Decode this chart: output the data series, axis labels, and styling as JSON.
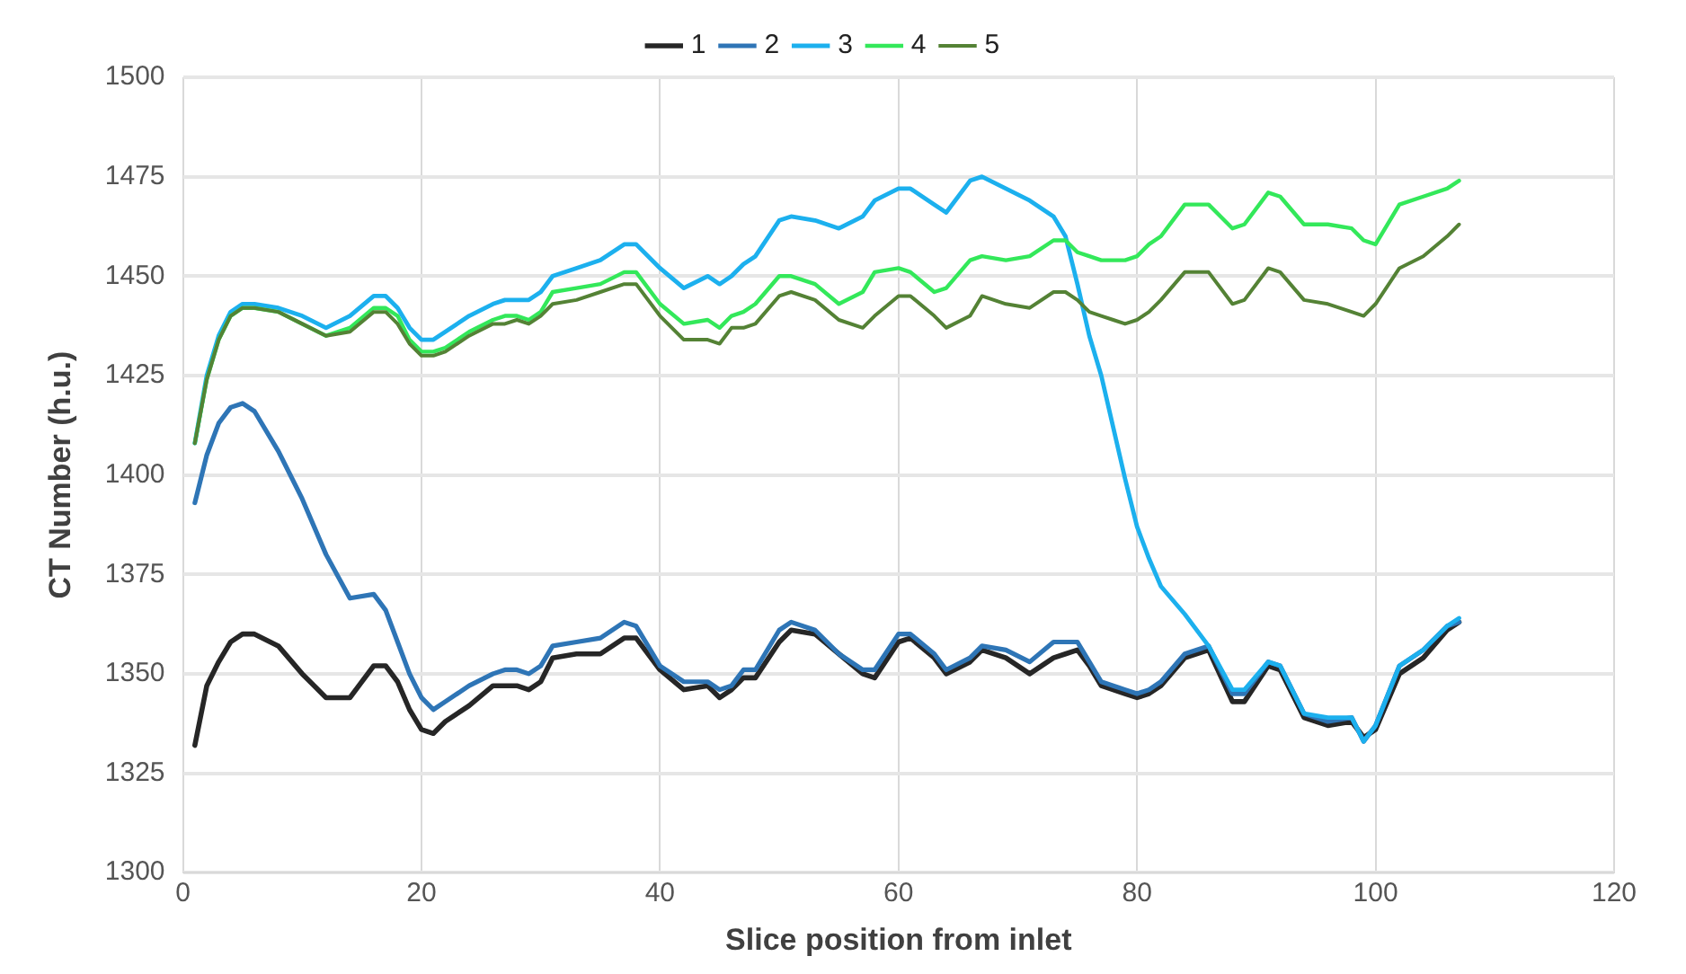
{
  "chart_data": {
    "type": "line",
    "xlabel": "Slice position from inlet",
    "ylabel": "CT Number (h.u.)",
    "x": [
      1,
      2,
      3,
      4,
      5,
      6,
      8,
      10,
      12,
      14,
      16,
      17,
      18,
      19,
      20,
      21,
      22,
      24,
      26,
      27,
      28,
      29,
      30,
      31,
      33,
      35,
      37,
      38,
      40,
      42,
      44,
      45,
      46,
      47,
      48,
      50,
      51,
      53,
      55,
      57,
      58,
      60,
      61,
      63,
      64,
      66,
      67,
      69,
      71,
      73,
      74,
      75,
      76,
      77,
      78,
      79,
      80,
      81,
      82,
      84,
      86,
      88,
      89,
      91,
      92,
      94,
      96,
      98,
      99,
      100,
      102,
      104,
      106,
      107
    ],
    "series": [
      {
        "name": "1",
        "color": "#262626",
        "values": [
          1332,
          1347,
          1353,
          1358,
          1360,
          1360,
          1357,
          1350,
          1344,
          1344,
          1352,
          1352,
          1348,
          1341,
          1336,
          1335,
          1338,
          1342,
          1347,
          1347,
          1347,
          1346,
          1348,
          1354,
          1355,
          1355,
          1359,
          1359,
          1351,
          1346,
          1347,
          1344,
          1346,
          1349,
          1349,
          1358,
          1361,
          1360,
          1355,
          1350,
          1349,
          1358,
          1359,
          1354,
          1350,
          1353,
          1356,
          1354,
          1350,
          1354,
          1355,
          1356,
          1352,
          1347,
          1346,
          1345,
          1344,
          1345,
          1347,
          1354,
          1356,
          1343,
          1343,
          1352,
          1351,
          1339,
          1337,
          1338,
          1334,
          1336,
          1350,
          1354,
          1361,
          1363
        ]
      },
      {
        "name": "2",
        "color": "#2e75b6",
        "values": [
          1393,
          1405,
          1413,
          1417,
          1418,
          1416,
          1406,
          1394,
          1380,
          1369,
          1370,
          1366,
          1358,
          1350,
          1344,
          1341,
          1343,
          1347,
          1350,
          1351,
          1351,
          1350,
          1352,
          1357,
          1358,
          1359,
          1363,
          1362,
          1352,
          1348,
          1348,
          1346,
          1347,
          1351,
          1351,
          1361,
          1363,
          1361,
          1355,
          1351,
          1351,
          1360,
          1360,
          1355,
          1351,
          1354,
          1357,
          1356,
          1353,
          1358,
          1358,
          1358,
          1353,
          1348,
          1347,
          1346,
          1345,
          1346,
          1348,
          1355,
          1357,
          1345,
          1345,
          1353,
          1352,
          1340,
          1338,
          1339,
          1333,
          1337,
          1352,
          1356,
          1362,
          1363
        ]
      },
      {
        "name": "3",
        "color": "#1cb0ee",
        "values": [
          1408,
          1425,
          1435,
          1441,
          1443,
          1443,
          1442,
          1440,
          1437,
          1440,
          1445,
          1445,
          1442,
          1437,
          1434,
          1434,
          1436,
          1440,
          1443,
          1444,
          1444,
          1444,
          1446,
          1450,
          1452,
          1454,
          1458,
          1458,
          1452,
          1447,
          1450,
          1448,
          1450,
          1453,
          1455,
          1464,
          1465,
          1464,
          1462,
          1465,
          1469,
          1472,
          1472,
          1468,
          1466,
          1474,
          1475,
          1472,
          1469,
          1465,
          1460,
          1448,
          1435,
          1425,
          1412,
          1399,
          1387,
          1379,
          1372,
          1365,
          1357,
          1346,
          1346,
          1353,
          1352,
          1340,
          1339,
          1339,
          1333,
          1337,
          1352,
          1356,
          1362,
          1364
        ]
      },
      {
        "name": "4",
        "color": "#33e85a",
        "values": [
          1408,
          1424,
          1434,
          1440,
          1442,
          1442,
          1441,
          1438,
          1435,
          1437,
          1442,
          1442,
          1440,
          1434,
          1431,
          1431,
          1432,
          1436,
          1439,
          1440,
          1440,
          1439,
          1441,
          1446,
          1447,
          1448,
          1451,
          1451,
          1443,
          1438,
          1439,
          1437,
          1440,
          1441,
          1443,
          1450,
          1450,
          1448,
          1443,
          1446,
          1451,
          1452,
          1451,
          1446,
          1447,
          1454,
          1455,
          1454,
          1455,
          1459,
          1459,
          1456,
          1455,
          1454,
          1454,
          1454,
          1455,
          1458,
          1460,
          1468,
          1468,
          1462,
          1463,
          1471,
          1470,
          1463,
          1463,
          1462,
          1459,
          1458,
          1468,
          1470,
          1472,
          1474
        ]
      },
      {
        "name": "5",
        "color": "#548235",
        "values": [
          1408,
          1424,
          1434,
          1440,
          1442,
          1442,
          1441,
          1438,
          1435,
          1436,
          1441,
          1441,
          1438,
          1433,
          1430,
          1430,
          1431,
          1435,
          1438,
          1438,
          1439,
          1438,
          1440,
          1443,
          1444,
          1446,
          1448,
          1448,
          1440,
          1434,
          1434,
          1433,
          1437,
          1437,
          1438,
          1445,
          1446,
          1444,
          1439,
          1437,
          1440,
          1445,
          1445,
          1440,
          1437,
          1440,
          1445,
          1443,
          1442,
          1446,
          1446,
          1444,
          1441,
          1440,
          1439,
          1438,
          1439,
          1441,
          1444,
          1451,
          1451,
          1443,
          1444,
          1452,
          1451,
          1444,
          1443,
          1441,
          1440,
          1443,
          1452,
          1455,
          1460,
          1463
        ]
      }
    ],
    "xlim": [
      0,
      120
    ],
    "xticks": [
      0,
      20,
      40,
      60,
      80,
      100,
      120
    ],
    "ylim": [
      1300,
      1500
    ],
    "yticks": [
      1300,
      1325,
      1350,
      1375,
      1400,
      1425,
      1450,
      1475,
      1500
    ],
    "grid": true,
    "legend": "top",
    "marker": "none",
    "line_style": "solid"
  }
}
